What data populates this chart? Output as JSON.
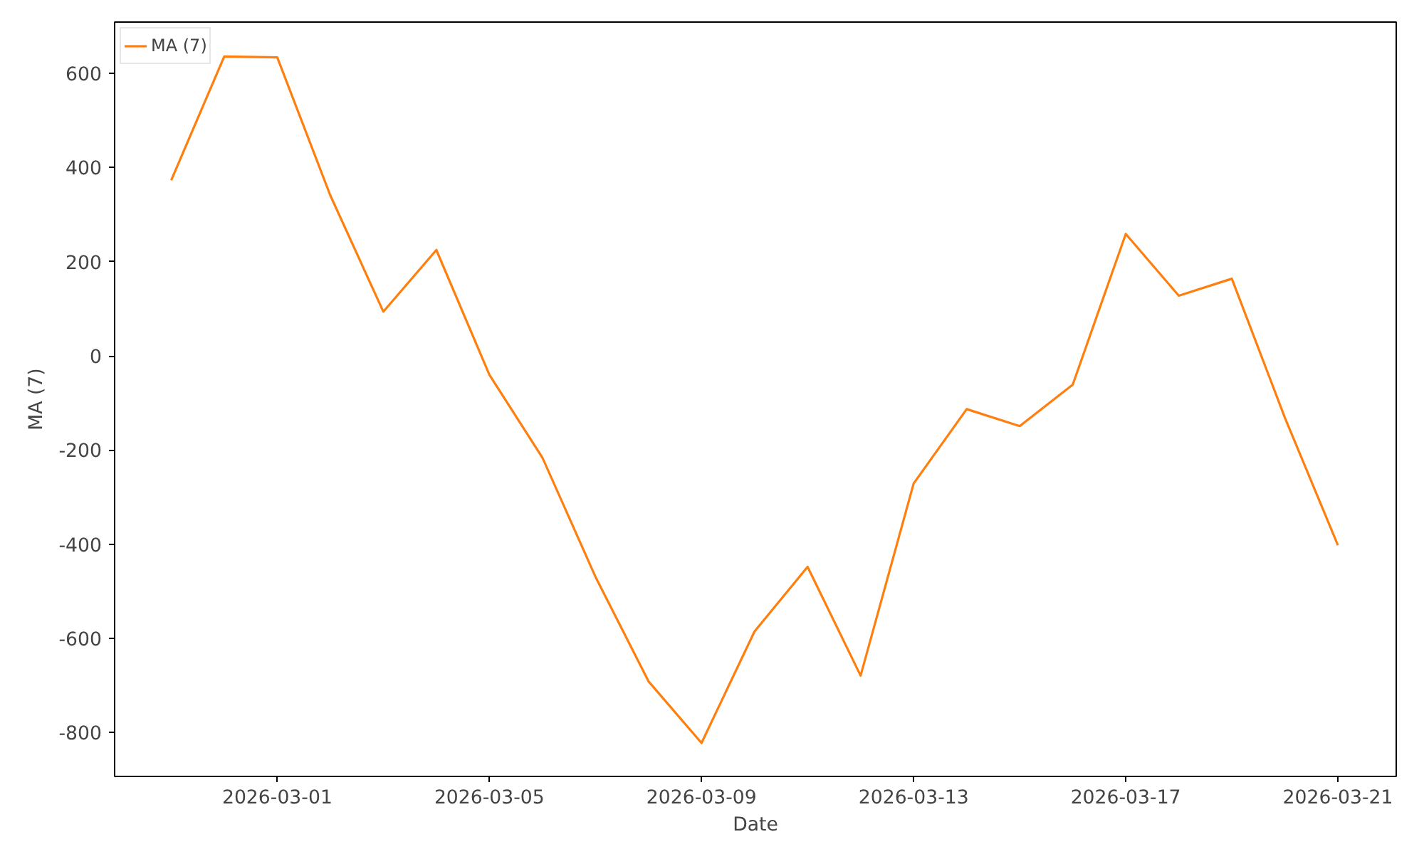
{
  "chart_data": {
    "type": "line",
    "xlabel": "Date",
    "ylabel": "MA (7)",
    "x": [
      "2026-02-27",
      "2026-02-28",
      "2026-03-01",
      "2026-03-02",
      "2026-03-03",
      "2026-03-04",
      "2026-03-05",
      "2026-03-06",
      "2026-03-07",
      "2026-03-08",
      "2026-03-09",
      "2026-03-10",
      "2026-03-11",
      "2026-03-12",
      "2026-03-13",
      "2026-03-14",
      "2026-03-15",
      "2026-03-16",
      "2026-03-17",
      "2026-03-18",
      "2026-03-19",
      "2026-03-20",
      "2026-03-21"
    ],
    "series": [
      {
        "name": "MA (7)",
        "color": "#ff7f0e",
        "values": [
          373,
          636,
          634,
          341,
          94,
          225,
          -40,
          -216,
          -469,
          -691,
          -822,
          -585,
          -448,
          -679,
          -271,
          -113,
          -149,
          -61,
          259,
          128,
          164,
          -131,
          -402
        ]
      }
    ],
    "xlim": [
      "2026-02-25T22:24",
      "2026-03-22T02:24"
    ],
    "xticks": [
      "2026-03-01",
      "2026-03-05",
      "2026-03-09",
      "2026-03-13",
      "2026-03-17",
      "2026-03-21"
    ],
    "ylim": [
      -893,
      709
    ],
    "yticks": [
      -800,
      -600,
      -400,
      -200,
      0,
      200,
      400,
      600
    ],
    "grid": false,
    "legend": "top left",
    "marker": "none",
    "line_style": "solid"
  }
}
